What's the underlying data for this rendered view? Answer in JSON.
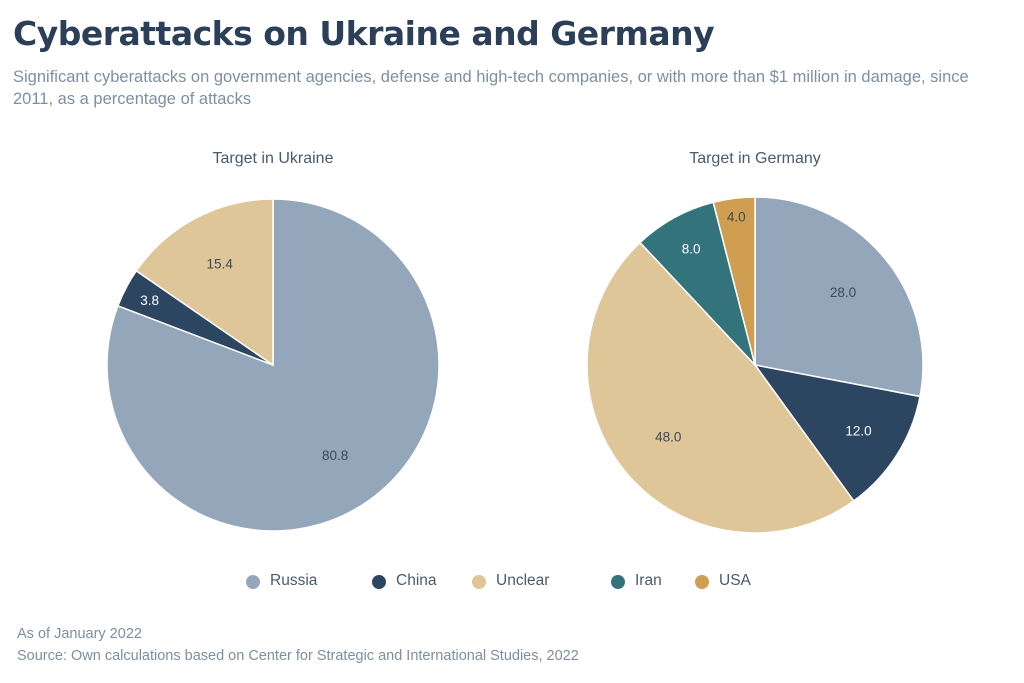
{
  "title": "Cyberattacks on Ukraine and Germany",
  "subtitle": "Significant cyberattacks on government agencies, defense and high-tech companies, or with more than $1 million in damage, since 2011, as a percentage of attacks",
  "colors": {
    "Russia": "#93a6ba",
    "China": "#2c4661",
    "Unclear": "#dfc699",
    "Iran": "#33737b",
    "USA": "#cf9e50"
  },
  "legend": [
    "Russia",
    "China",
    "Unclear",
    "Iran",
    "USA"
  ],
  "chart_data": [
    {
      "type": "pie",
      "title": "Target in Ukraine",
      "slices": [
        {
          "label": "Russia",
          "value": 80.8,
          "display": "80.8"
        },
        {
          "label": "China",
          "value": 3.8,
          "display": "3.8"
        },
        {
          "label": "Unclear",
          "value": 15.4,
          "display": "15.4"
        }
      ]
    },
    {
      "type": "pie",
      "title": "Target in Germany",
      "slices": [
        {
          "label": "Russia",
          "value": 28.0,
          "display": "28.0"
        },
        {
          "label": "China",
          "value": 12.0,
          "display": "12.0"
        },
        {
          "label": "Unclear",
          "value": 48.0,
          "display": "48.0"
        },
        {
          "label": "Iran",
          "value": 8.0,
          "display": "8.0"
        },
        {
          "label": "USA",
          "value": 4.0,
          "display": "4.0"
        }
      ]
    }
  ],
  "footer": {
    "asof": "As of January 2022",
    "source": "Source: Own calculations based on Center for Strategic and International Studies,  2022"
  }
}
